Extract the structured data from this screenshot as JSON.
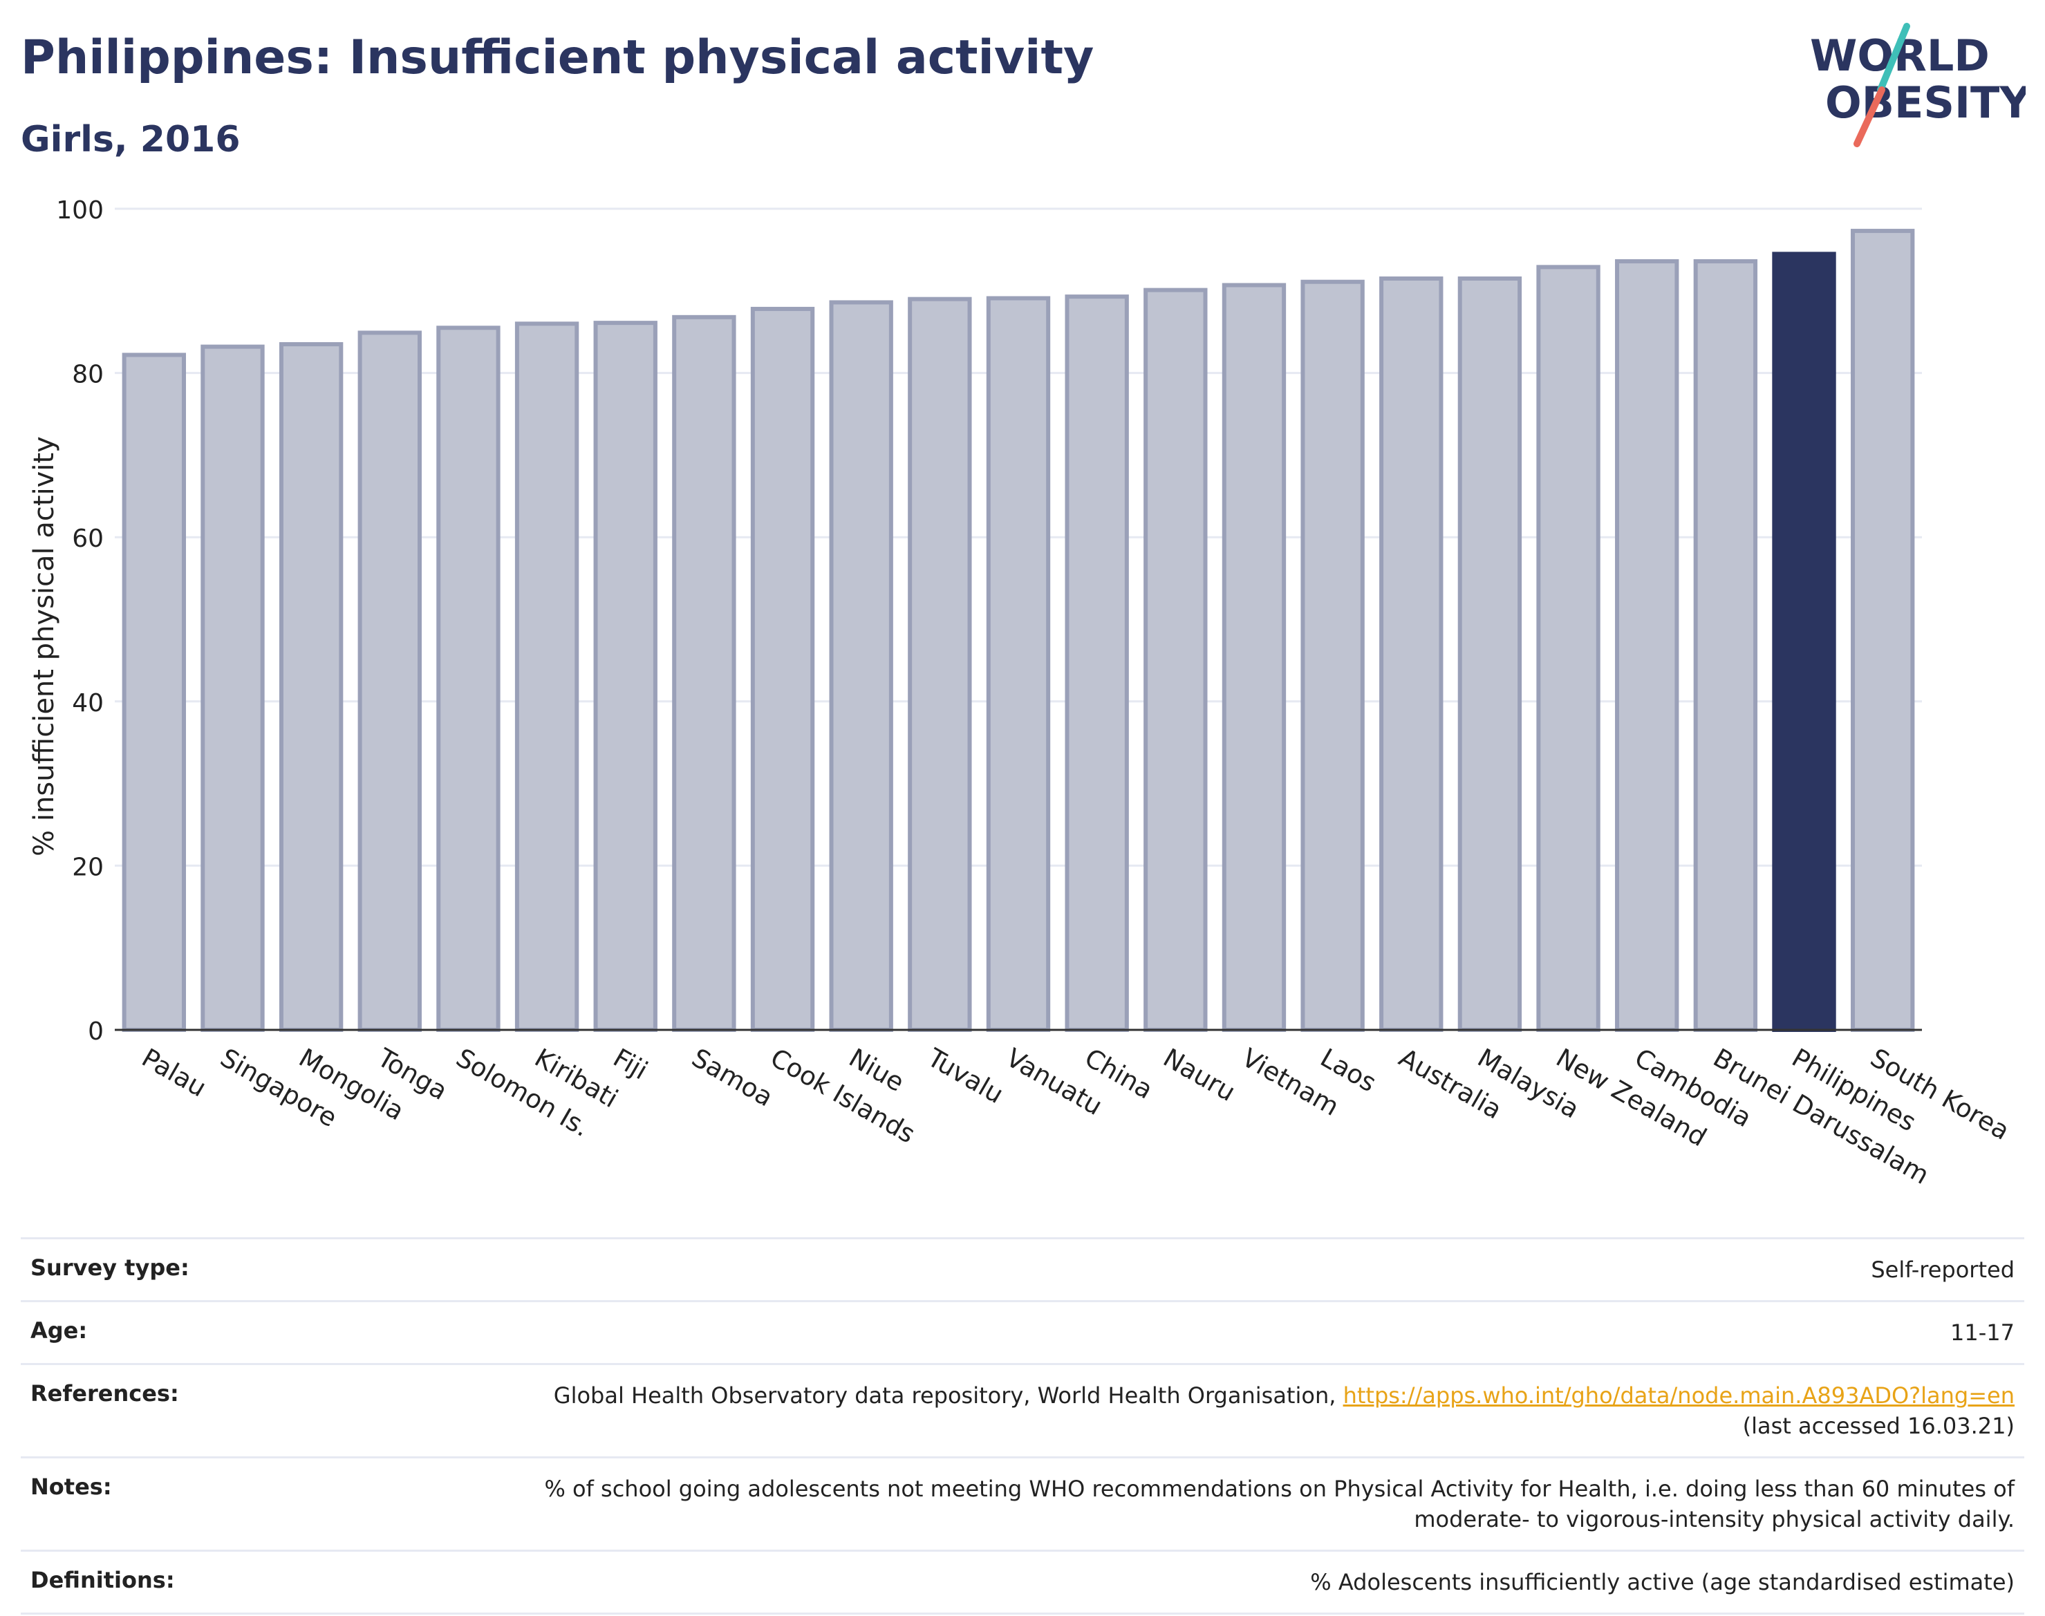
{
  "header": {
    "title": "Philippines: Insufficient physical activity",
    "subtitle": "Girls, 2016"
  },
  "logo": {
    "line1": "WORLD",
    "line2": "OBESITY"
  },
  "colors": {
    "highlight_bar": "#2b3560",
    "bar_fill": "#bfc3d1",
    "bar_outline": "#9aa0b8",
    "title": "#2b3560",
    "gridline": "#e6e9f2",
    "link": "#e8a317"
  },
  "chart_data": {
    "type": "bar",
    "title": "Philippines: Insufficient physical activity",
    "subtitle": "Girls, 2016",
    "xlabel": "",
    "ylabel": "% insufficient physical activity",
    "ylim": [
      0,
      100
    ],
    "yticks": [
      0,
      20,
      40,
      60,
      80,
      100
    ],
    "grid": true,
    "highlight": "Philippines",
    "categories": [
      "Palau",
      "Singapore",
      "Mongolia",
      "Tonga",
      "Solomon Is.",
      "Kiribati",
      "Fiji",
      "Samoa",
      "Cook Islands",
      "Niue",
      "Tuvalu",
      "Vanuatu",
      "China",
      "Nauru",
      "Vietnam",
      "Laos",
      "Australia",
      "Malaysia",
      "New Zealand",
      "Cambodia",
      "Brunei Darussalam",
      "Philippines",
      "South Korea"
    ],
    "values": [
      82.2,
      83.2,
      83.5,
      84.9,
      85.5,
      86.0,
      86.1,
      86.8,
      87.8,
      88.6,
      89.0,
      89.1,
      89.3,
      90.1,
      90.7,
      91.1,
      91.5,
      91.5,
      92.9,
      93.6,
      93.6,
      94.5,
      97.3
    ]
  },
  "info": {
    "survey_type_label": "Survey type:",
    "survey_type_value": "Self-reported",
    "age_label": "Age:",
    "age_value": "11-17",
    "references_label": "References:",
    "references_text": "Global Health Observatory data repository, World Health Organisation, ",
    "references_link": "https://apps.who.int/gho/data/node.main.A893ADO?lang=en",
    "references_accessed": "(last accessed 16.03.21)",
    "notes_label": "Notes:",
    "notes_line1": "% of school going adolescents not meeting WHO recommendations on Physical Activity for Health, i.e. doing less than 60 minutes of",
    "notes_line2": "moderate- to vigorous-intensity physical activity daily.",
    "definitions_label": "Definitions:",
    "definitions_value": "% Adolescents insufficiently active (age standardised estimate)"
  }
}
